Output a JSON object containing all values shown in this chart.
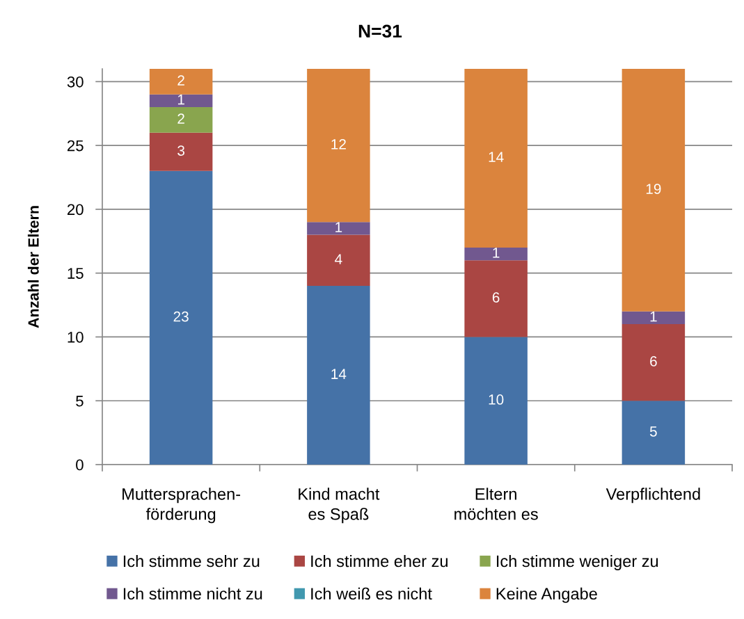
{
  "chart_data": {
    "type": "bar",
    "title": "N=31",
    "ylabel": "Anzahl der Eltern",
    "categories": [
      "Muttersprachen-\nförderung",
      "Kind macht\nes Spaß",
      "Eltern\nmöchten es",
      "Verpflichtend"
    ],
    "stacked": true,
    "ylim": [
      0,
      31
    ],
    "yticks": [
      0,
      5,
      10,
      15,
      20,
      25,
      30
    ],
    "grid": "y",
    "legend": "bottom",
    "series": [
      {
        "name": "Ich stimme sehr zu",
        "color": "#4572a7",
        "values": [
          23,
          14,
          10,
          5
        ],
        "value_labels": [
          "23",
          "14",
          "10",
          "5"
        ]
      },
      {
        "name": "Ich stimme eher zu",
        "color": "#aa4643",
        "values": [
          3,
          4,
          6,
          6
        ],
        "value_labels": [
          "3",
          "4",
          "6",
          "6"
        ]
      },
      {
        "name": "Ich stimme weniger zu",
        "color": "#89a54e",
        "values": [
          2,
          0,
          0,
          0
        ],
        "value_labels": [
          "2",
          null,
          null,
          null
        ]
      },
      {
        "name": "Ich stimme nicht zu",
        "color": "#71588f",
        "values": [
          1,
          1,
          1,
          1
        ],
        "value_labels": [
          "1",
          "1",
          "1",
          "1"
        ]
      },
      {
        "name": "Ich weiß es nicht",
        "color": "#4198af",
        "values": [
          0,
          0,
          0,
          0
        ],
        "value_labels": [
          null,
          null,
          null,
          null
        ]
      },
      {
        "name": "Keine Angabe",
        "color": "#db843d",
        "values": [
          2,
          12,
          14,
          19
        ],
        "value_labels": [
          "2",
          "12",
          "14",
          "19"
        ]
      }
    ]
  }
}
